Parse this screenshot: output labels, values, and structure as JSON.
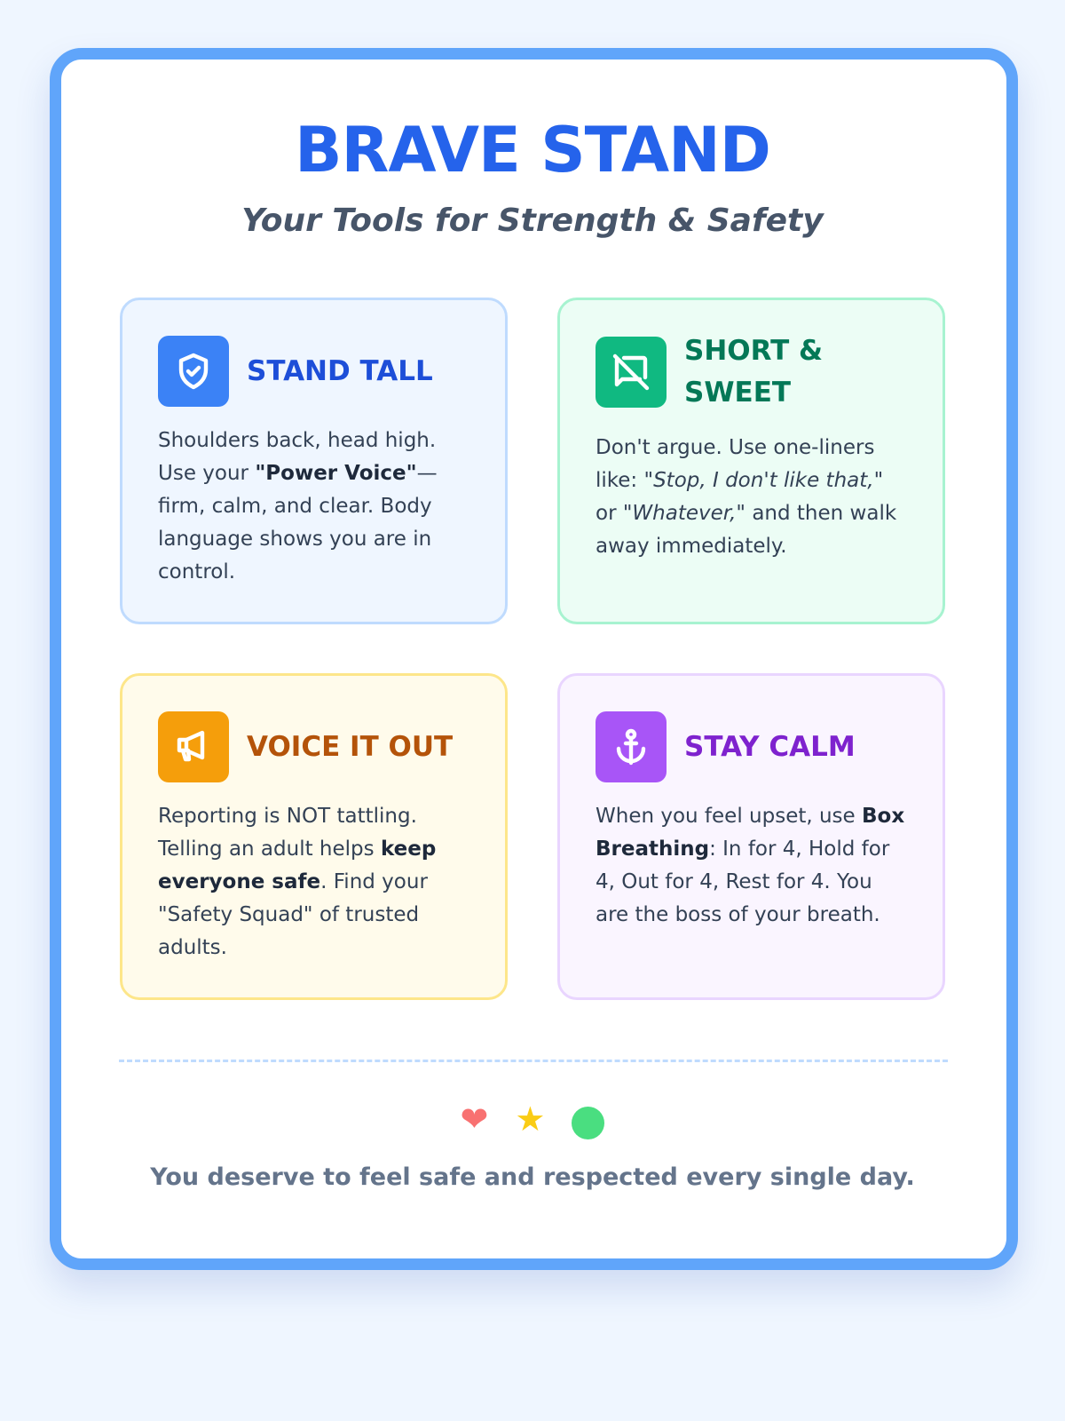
{
  "header": {
    "title": "BRAVE STAND",
    "subtitle": "Your Tools for Strength & Safety"
  },
  "cards": [
    {
      "title": "STAND TALL",
      "icon": "shield-check-icon",
      "color": "#3b82f6",
      "title_color": "#1d4ed8",
      "parts": [
        "Shoulders back, head high. Use your ",
        "\"Power Voice\"",
        "— firm, calm, and clear. Body language shows you are in control."
      ]
    },
    {
      "title": "SHORT & SWEET",
      "icon": "message-off-icon",
      "color": "#10b981",
      "title_color": "#047857",
      "parts": [
        "Don't argue. Use one-liners like: ",
        "\"Stop, I don't like that,\"",
        " or ",
        "\"Whatever,\"",
        " and then walk away immediately."
      ]
    },
    {
      "title": "VOICE IT OUT",
      "icon": "megaphone-icon",
      "color": "#f59e0b",
      "title_color": "#b45309",
      "parts": [
        "Reporting is NOT tattling. Telling an adult helps ",
        "keep everyone safe",
        ". Find your \"Safety Squad\" of trusted adults."
      ]
    },
    {
      "title": "STAY CALM",
      "icon": "anchor-icon",
      "color": "#a855f7",
      "title_color": "#7e22ce",
      "parts": [
        "When you feel upset, use ",
        "Box Breathing",
        ": In for 4, Hold for 4, Out for 4, Rest for 4. You are the boss of your breath."
      ]
    }
  ],
  "footer": {
    "icons": [
      "heart-icon",
      "star-icon",
      "circle-icon"
    ],
    "text": "You deserve to feel safe and respected every single day."
  }
}
